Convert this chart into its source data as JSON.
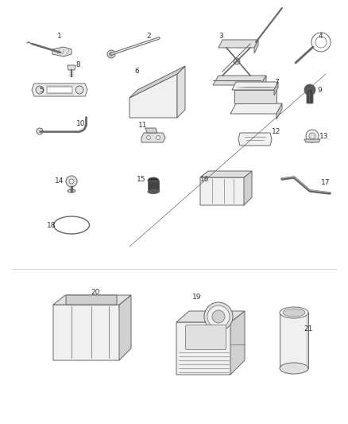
{
  "bg_color": "#ffffff",
  "line_color": "#666666",
  "label_color": "#333333",
  "figsize": [
    4.38,
    5.33
  ],
  "dpi": 100,
  "lw": 0.7,
  "label_fs": 6.5
}
